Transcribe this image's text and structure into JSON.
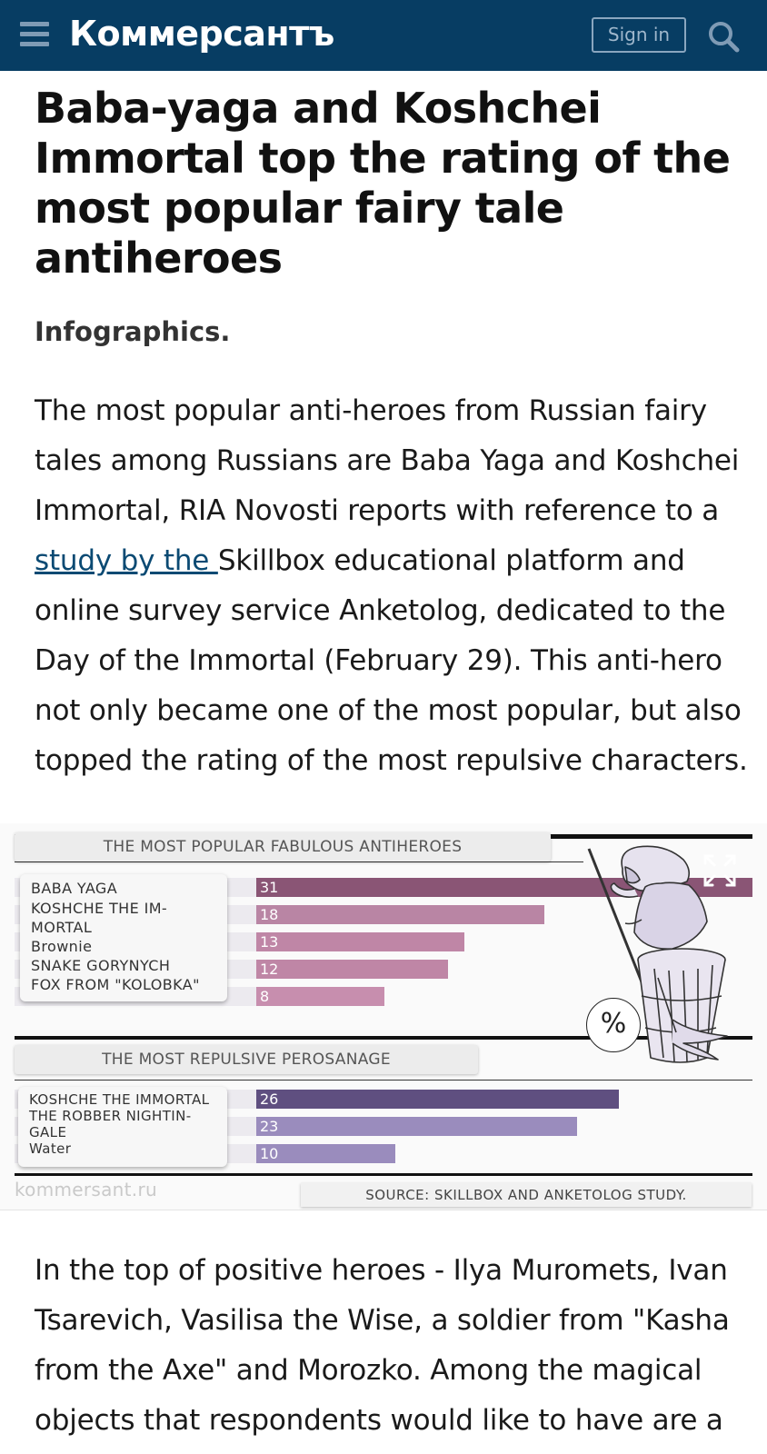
{
  "header": {
    "logo": "Коммерсантъ",
    "signin_label": "Sign in",
    "menu_icon": "hamburger-menu-icon",
    "search_icon": "search-icon",
    "background_color": "#073d63"
  },
  "article": {
    "headline": "Baba-yaga and Koshchei Immortal top the rating of the most popular fairy tale antiheroes",
    "rubric": "Infographics.",
    "lead_before_link": "The most popular anti-heroes from Russian fairy tales among Russians are Baba Yaga and Koshchei Immortal, RIA Novosti reports with reference to a ",
    "lead_link": "study by the ",
    "lead_after_link": "Skillbox educational platform and online survey service Anketolog, dedicated to the Day of the Immortal (February 29). This anti-hero not only became one of the most popular, but also topped the rating of the most repulsive characters.",
    "body_paragraph": "In the top of positive heroes - Ilya Muromets, Ivan Tsarevich, Vasilisa the Wise, a soldier from \"Kasha from the Axe\" and Morozko. Among the magical objects that respondents would like to have are a",
    "link_color": "#0b4a73"
  },
  "infographic": {
    "watermark": "kommersant.ru",
    "source": "SOURCE: SKILLBOX AND ANKETOLOG STUDY.",
    "percent_symbol": "%",
    "illustration": "baba-yaga-in-mortar-illustration",
    "expand_icon": "expand-icon"
  },
  "chart_data": [
    {
      "type": "bar",
      "title": "THE MOST POPULAR FABULOUS ANTIHEROES",
      "categories": [
        "BABA YAGA",
        "KOSHCHE THE IM-MORTAL",
        "Brownie",
        "SNAKE GORYNYCH",
        "FOX FROM \"KOLOBKA\""
      ],
      "category_lines": [
        [
          "BABA YAGA"
        ],
        [
          "KOSHCHE THE IM-",
          "MORTAL"
        ],
        [
          "Brownie"
        ],
        [
          "SNAKE GORYNYCH"
        ],
        [
          "FOX FROM \"KOLOBKA\""
        ]
      ],
      "values": [
        31,
        18,
        13,
        12,
        8
      ],
      "colors": [
        "#8a5575",
        "#b985a4",
        "#bf86a6",
        "#bf86a6",
        "#c78eae"
      ],
      "unit": "%"
    },
    {
      "type": "bar",
      "title": "THE MOST REPULSIVE PEROSANAGE",
      "categories": [
        "KOSHCHE THE IMMORTAL",
        "THE ROBBER NIGHTIN-GALE",
        "Water"
      ],
      "category_lines": [
        [
          "KOSHCHE THE IMMORTAL"
        ],
        [
          "THE ROBBER NIGHTIN-",
          "GALE"
        ],
        [
          "Water"
        ]
      ],
      "values": [
        26,
        23,
        10
      ],
      "colors": [
        "#5f4f80",
        "#9a8cbd",
        "#9a8cbd"
      ],
      "unit": "%"
    }
  ]
}
